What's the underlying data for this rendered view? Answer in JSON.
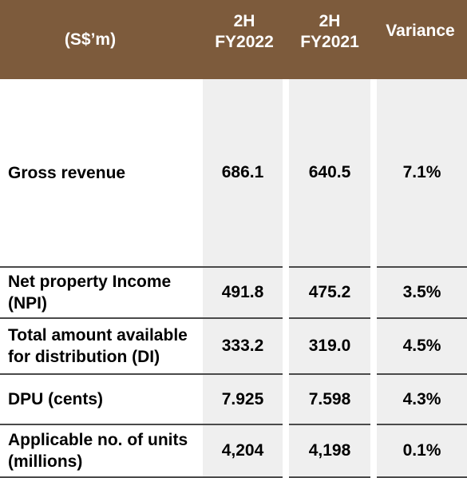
{
  "header": {
    "label": "(S$’m)",
    "col1_line1": "2H",
    "col1_line2": "FY2022",
    "col2_line1": "2H",
    "col2_line2": "FY2021",
    "col3": "Variance"
  },
  "rows": [
    {
      "label_line1": "Gross revenue",
      "label_line2": "",
      "fy2022": "686.1",
      "fy2021": "640.5",
      "variance": "7.1%"
    },
    {
      "label_line1": "Net property Income",
      "label_line2": "(NPI)",
      "fy2022": "491.8",
      "fy2021": "475.2",
      "variance": "3.5%"
    },
    {
      "label_line1": "Total amount available",
      "label_line2": "for distribution (DI)",
      "fy2022": "333.2",
      "fy2021": "319.0",
      "variance": "4.5%"
    },
    {
      "label_line1": "DPU (cents)",
      "label_line2": "",
      "fy2022": "7.925",
      "fy2021": "7.598",
      "variance": "4.3%"
    },
    {
      "label_line1": "Applicable no. of units",
      "label_line2": "(millions)",
      "fy2022": "4,204",
      "fy2021": "4,198",
      "variance": "0.1%"
    }
  ],
  "colors": {
    "header_bg": "#7d5b3c",
    "header_text": "#ffffff",
    "shade": "#efefef",
    "rule": "#4a4a4a"
  }
}
